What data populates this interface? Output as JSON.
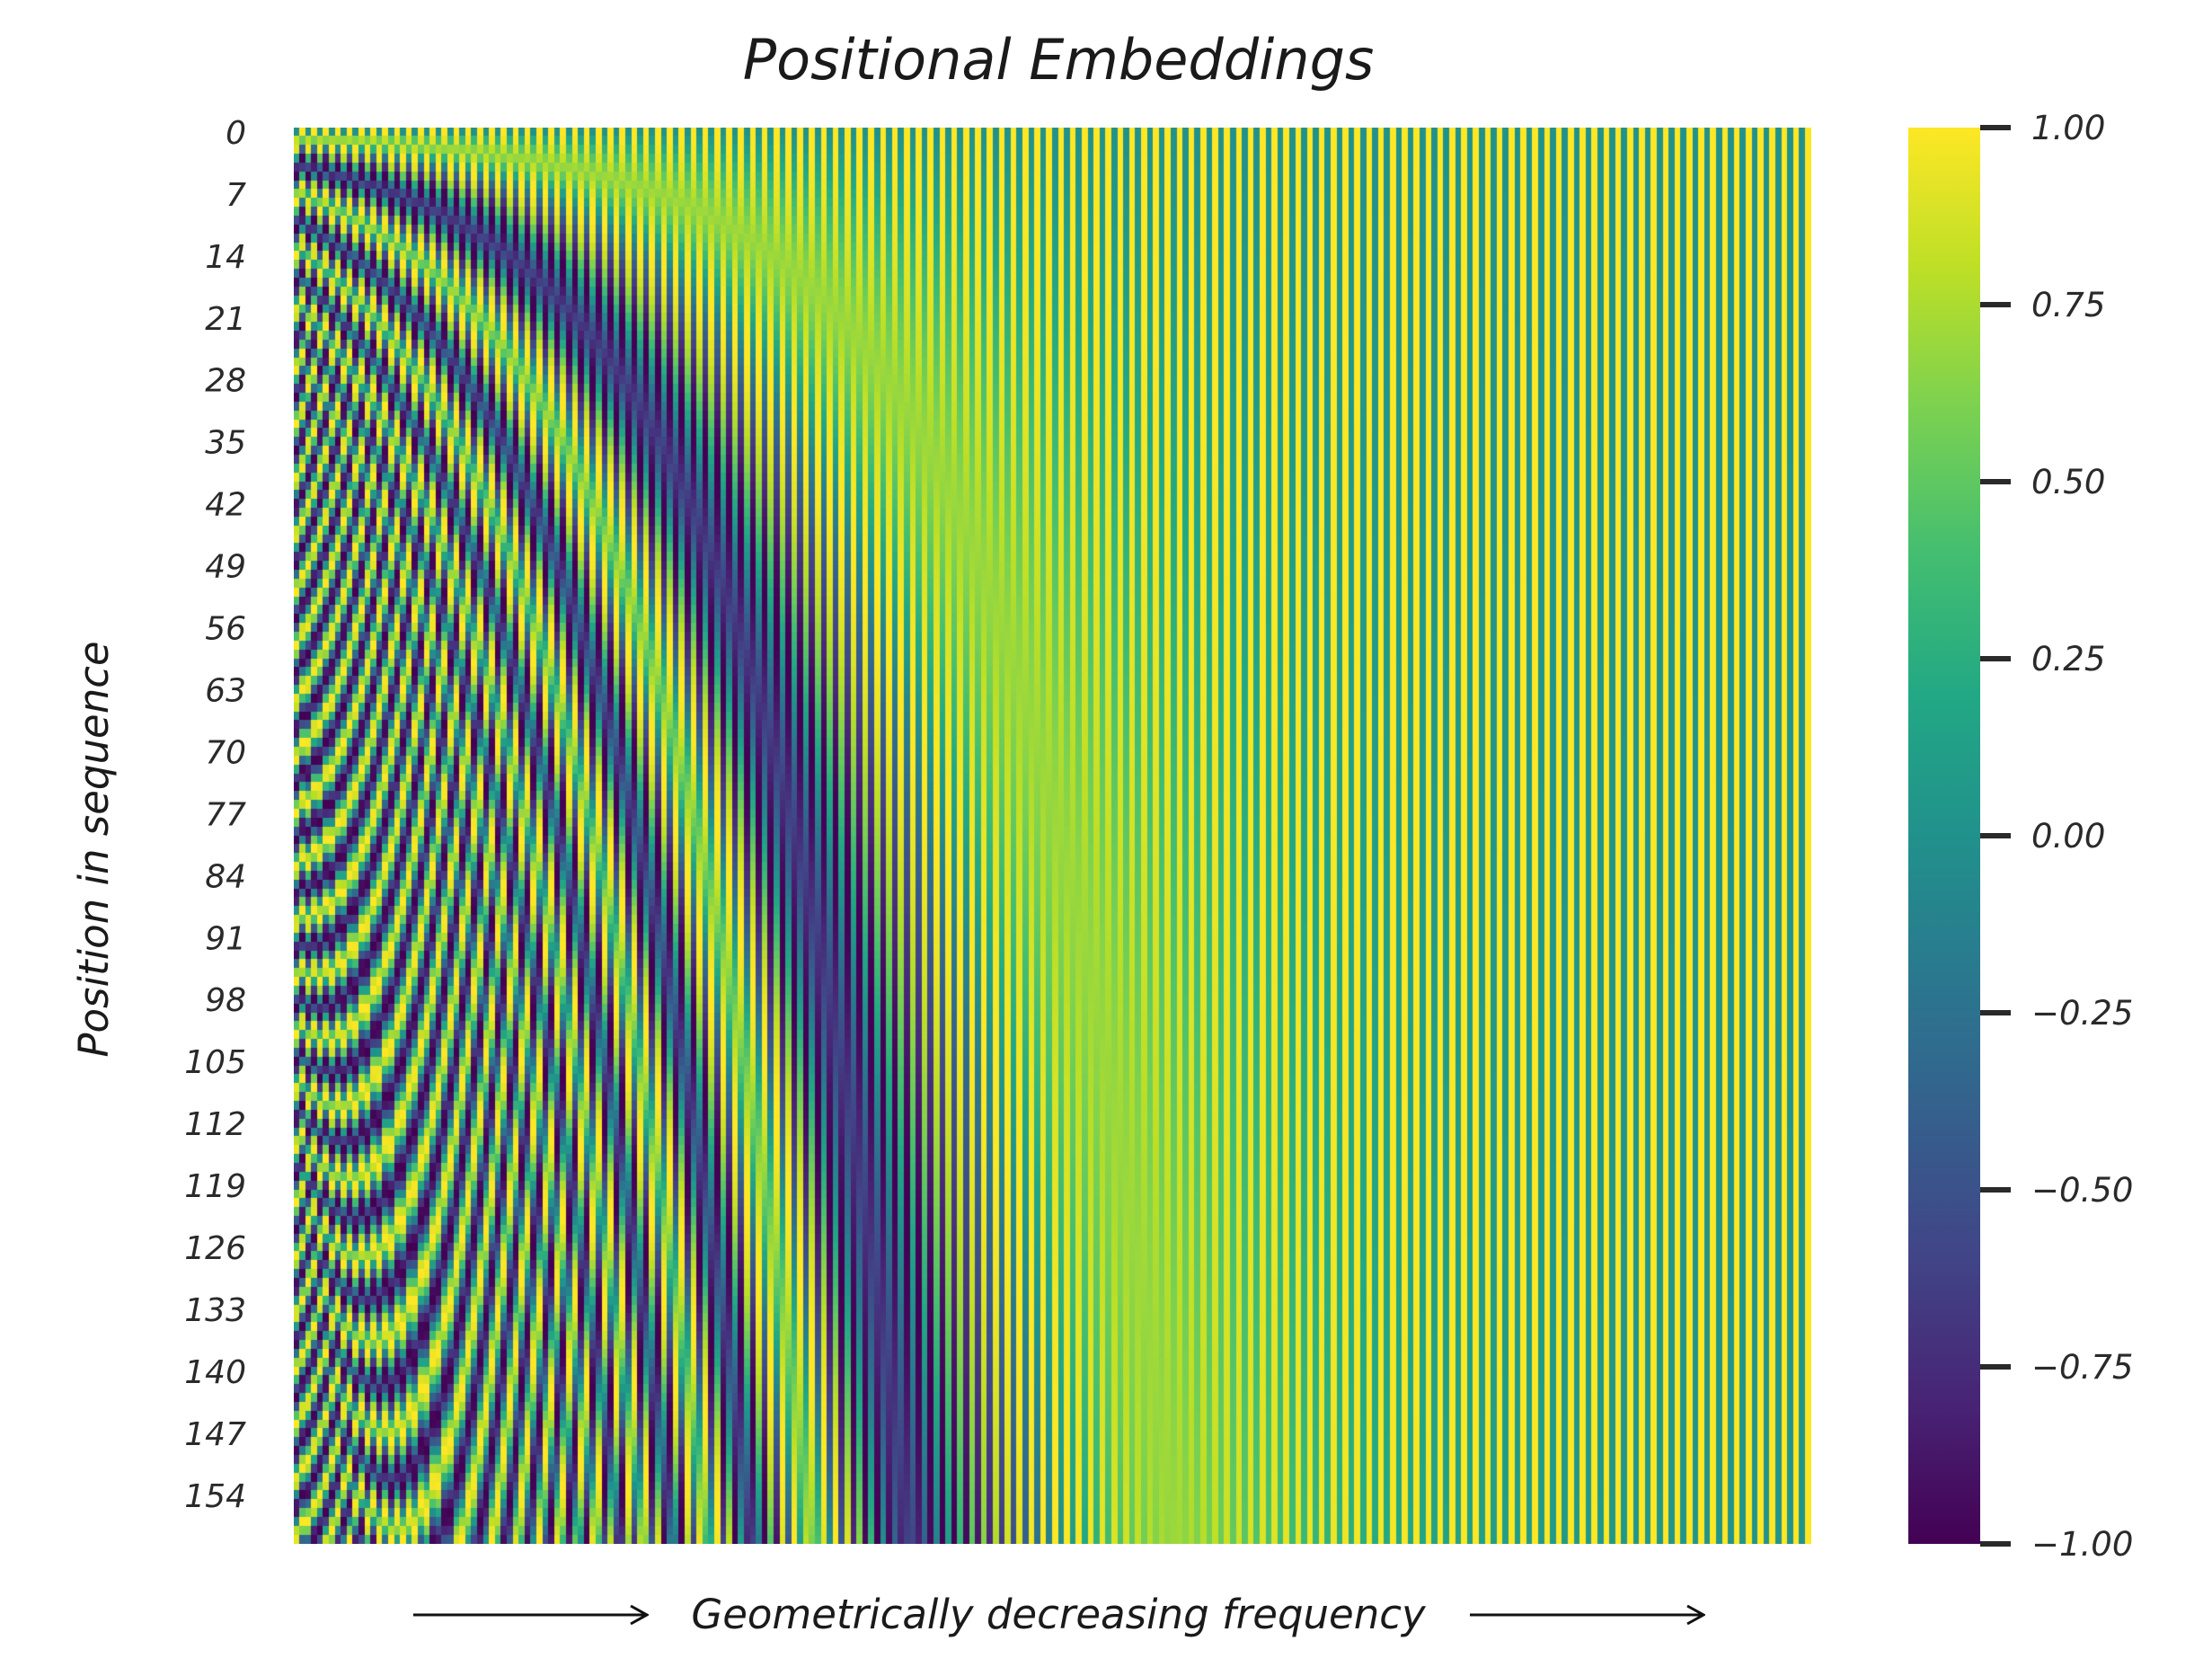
{
  "chart_data": {
    "type": "heatmap",
    "title": "Positional Embeddings",
    "ylabel": "Position in sequence",
    "xlabel": "Geometrically decreasing frequency",
    "colormap": "viridis",
    "n_positions": 160,
    "n_dimensions": 256,
    "value_function": "sinusoidal positional encoding: even columns sin(pos / 10000^(i/d)), odd columns cos(pos / 10000^(i/d))",
    "y_tick_labels": [
      "0",
      "7",
      "14",
      "21",
      "28",
      "35",
      "42",
      "49",
      "56",
      "63",
      "70",
      "77",
      "84",
      "91",
      "98",
      "105",
      "112",
      "119",
      "126",
      "133",
      "140",
      "147",
      "154"
    ],
    "colorbar": {
      "vmin": -1.0,
      "vmax": 1.0,
      "tick_labels": [
        "1.00",
        "0.75",
        "0.50",
        "0.25",
        "0.00",
        "−0.25",
        "−0.50",
        "−0.75",
        "−1.00"
      ],
      "tick_values": [
        1.0,
        0.75,
        0.5,
        0.25,
        0.0,
        -0.25,
        -0.5,
        -0.75,
        -1.0
      ]
    },
    "grid": false,
    "colors": {
      "viridis_low": "#440154",
      "viridis_mid": "#21918c",
      "viridis_high": "#fde725"
    }
  }
}
